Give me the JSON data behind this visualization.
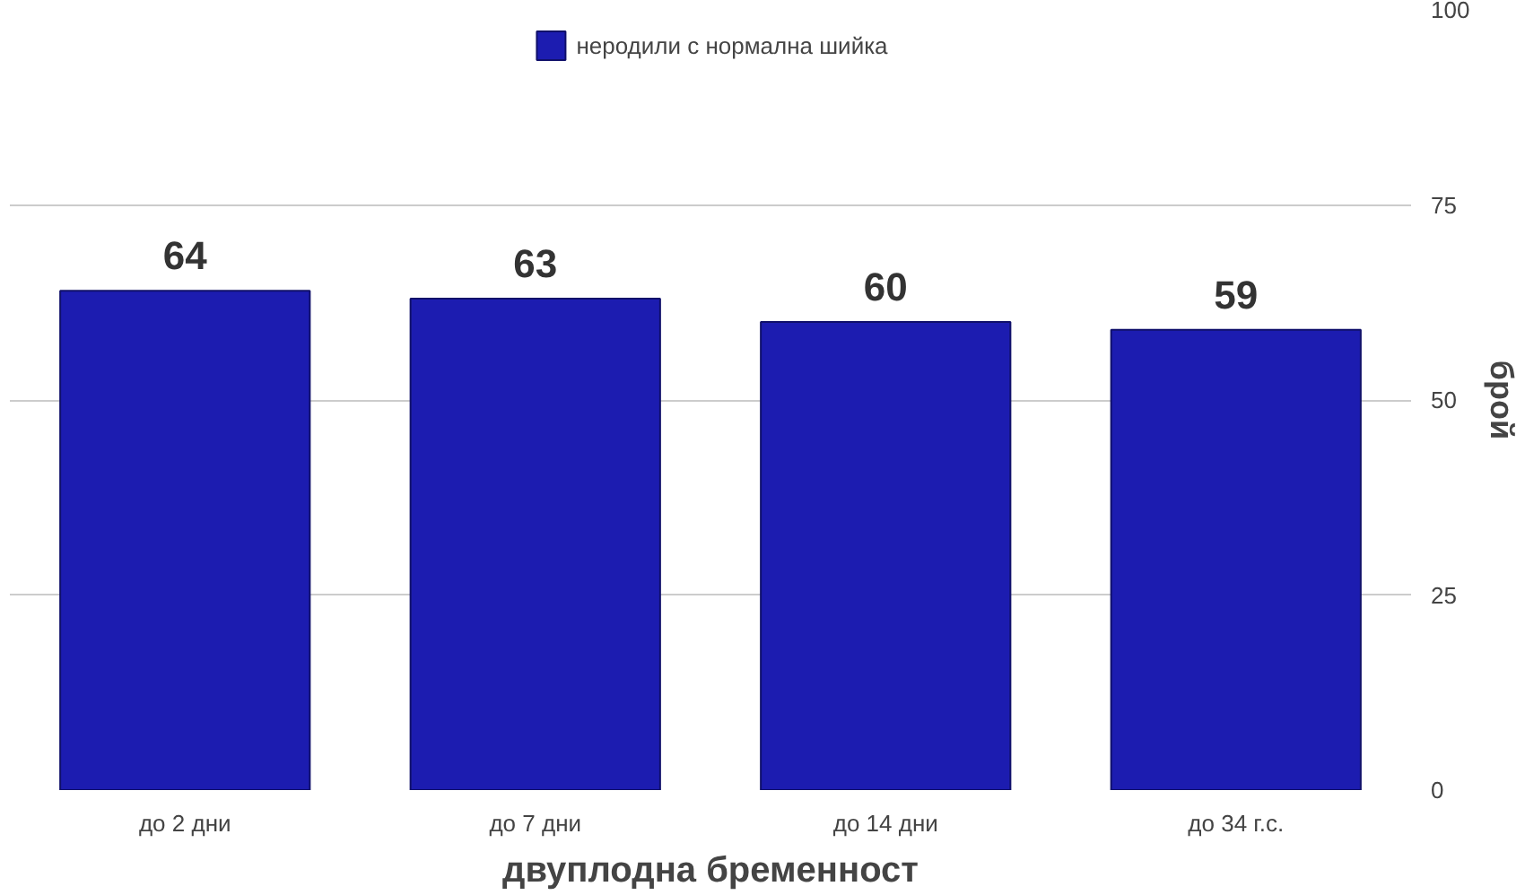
{
  "chart_data": {
    "type": "bar",
    "xlabel": "двуплодна бременност",
    "ylabel": "брой",
    "categories": [
      "до 2 дни",
      "до 7 дни",
      "до 14 дни",
      "до 34 г.с."
    ],
    "series": [
      {
        "name": "неродили с нормална шийка",
        "color": "#1c1cb0",
        "values": [
          64,
          63,
          60,
          59
        ]
      }
    ],
    "ylim": [
      0,
      100
    ],
    "yticks": [
      0,
      25,
      50,
      75,
      100
    ],
    "grid": "y",
    "legend": "top",
    "data_labels": true
  }
}
